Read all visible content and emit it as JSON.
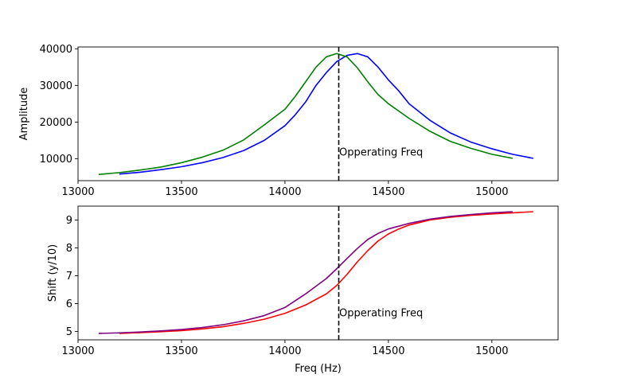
{
  "chart_data": [
    {
      "type": "line",
      "title": "",
      "xlabel": "",
      "ylabel": "Amplitude",
      "xlim": [
        13000,
        15320
      ],
      "ylim": [
        4000,
        40500
      ],
      "xticks": [
        13000,
        13500,
        14000,
        14500,
        15000
      ],
      "yticks": [
        10000,
        20000,
        30000,
        40000
      ],
      "grid": false,
      "series": [
        {
          "color": "#0000ff",
          "x": [
            13200,
            13300,
            13400,
            13500,
            13600,
            13700,
            13800,
            13900,
            14000,
            14050,
            14100,
            14150,
            14200,
            14250,
            14300,
            14350,
            14400,
            14450,
            14500,
            14550,
            14600,
            14700,
            14800,
            14900,
            15000,
            15100,
            15200
          ],
          "y": [
            5800,
            6300,
            7000,
            7800,
            8900,
            10300,
            12200,
            15000,
            19000,
            22000,
            25500,
            30000,
            33500,
            36500,
            38200,
            38700,
            37800,
            35000,
            31500,
            28500,
            25000,
            20500,
            17000,
            14500,
            12700,
            11200,
            10100
          ]
        },
        {
          "color": "#008000",
          "x": [
            13100,
            13200,
            13300,
            13400,
            13500,
            13600,
            13700,
            13800,
            13900,
            14000,
            14050,
            14100,
            14150,
            14200,
            14250,
            14300,
            14350,
            14400,
            14450,
            14500,
            14600,
            14700,
            14800,
            14900,
            15000,
            15100
          ],
          "y": [
            5700,
            6200,
            6900,
            7700,
            8900,
            10400,
            12300,
            15100,
            19200,
            23500,
            27000,
            31000,
            35000,
            37800,
            38700,
            37800,
            34800,
            31000,
            27500,
            25000,
            21000,
            17500,
            14700,
            12800,
            11200,
            10100
          ]
        }
      ],
      "annotations": [
        {
          "text": "Opperating Freq",
          "x": 14262,
          "y": 10800
        }
      ],
      "vline": 14260
    },
    {
      "type": "line",
      "title": "",
      "xlabel": "Freq (Hz)",
      "ylabel": "Shift (y/10)",
      "xlim": [
        13000,
        15320
      ],
      "ylim": [
        4.7,
        9.5
      ],
      "xticks": [
        13000,
        13500,
        14000,
        14500,
        15000
      ],
      "yticks": [
        5,
        6,
        7,
        8,
        9
      ],
      "grid": false,
      "series": [
        {
          "color": "#ff0000",
          "x": [
            13200,
            13300,
            13400,
            13500,
            13600,
            13700,
            13800,
            13900,
            14000,
            14100,
            14200,
            14250,
            14300,
            14350,
            14400,
            14450,
            14500,
            14550,
            14600,
            14700,
            14800,
            14900,
            15000,
            15100,
            15200
          ],
          "y": [
            4.93,
            4.96,
            4.99,
            5.03,
            5.09,
            5.17,
            5.29,
            5.44,
            5.65,
            5.95,
            6.35,
            6.65,
            7.05,
            7.5,
            7.9,
            8.25,
            8.5,
            8.68,
            8.82,
            9.0,
            9.1,
            9.17,
            9.22,
            9.26,
            9.3
          ]
        },
        {
          "color": "#800080",
          "x": [
            13100,
            13200,
            13300,
            13400,
            13500,
            13600,
            13700,
            13800,
            13900,
            14000,
            14100,
            14200,
            14250,
            14300,
            14350,
            14400,
            14450,
            14500,
            14600,
            14700,
            14800,
            14900,
            15000,
            15100
          ],
          "y": [
            4.93,
            4.95,
            4.98,
            5.02,
            5.07,
            5.14,
            5.24,
            5.38,
            5.57,
            5.86,
            6.35,
            6.9,
            7.25,
            7.62,
            7.98,
            8.3,
            8.52,
            8.68,
            8.88,
            9.03,
            9.13,
            9.2,
            9.26,
            9.3
          ]
        }
      ],
      "annotations": [
        {
          "text": "Opperating Freq",
          "x": 14262,
          "y": 5.55
        }
      ],
      "vline": 14260
    }
  ]
}
